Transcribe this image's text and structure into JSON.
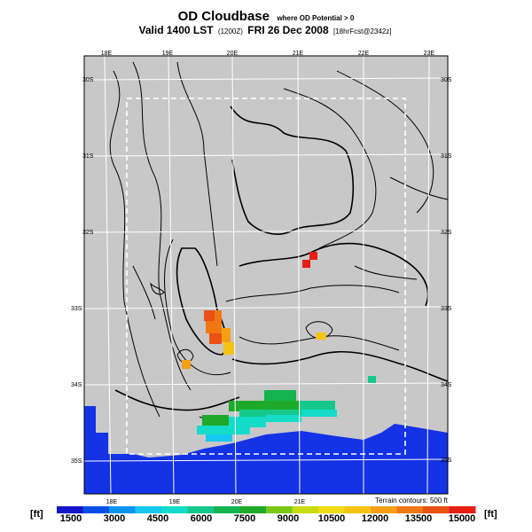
{
  "title": {
    "main": "OD Cloudbase",
    "subtitle": "where OD Potential > 0",
    "valid": "Valid 1400 LST",
    "run": "(1200Z)",
    "date": "FRI 26 Dec 2008",
    "forecast": "[18hrFcst@2342z]"
  },
  "axes": {
    "lon_top": [
      "18E",
      "19E",
      "20E",
      "21E",
      "22E",
      "23E"
    ],
    "lon_bottom": [
      "18E",
      "19E",
      "20E",
      "21E"
    ],
    "lat_right": [
      "30S",
      "31S",
      "32S",
      "33S",
      "34S",
      "35S"
    ],
    "lat_left": [
      "30S",
      "31S",
      "32S",
      "33S",
      "34S",
      "35S"
    ]
  },
  "footnote": "Terrain contours: 500 ft",
  "colorbar": {
    "unit_left": "[ft]",
    "unit_right": "[ft]",
    "ticks": [
      "1500",
      "3000",
      "4500",
      "6000",
      "7500",
      "9000",
      "10500",
      "12000",
      "13500",
      "15000"
    ],
    "colors": [
      "#1414c8",
      "#0a50e6",
      "#0a96f0",
      "#14c8f0",
      "#14dcc8",
      "#14c88c",
      "#14b450",
      "#1eaa28",
      "#78c814",
      "#c8dc14",
      "#f0dc14",
      "#f5c314",
      "#f5a014",
      "#f07814",
      "#eb5014",
      "#e61e14"
    ]
  },
  "map_colors": {
    "land": "#c8c8c8",
    "ocean": "#1432e6",
    "grid": "#ffffff",
    "contour": "#000000",
    "domain_box": "#ffffff"
  }
}
